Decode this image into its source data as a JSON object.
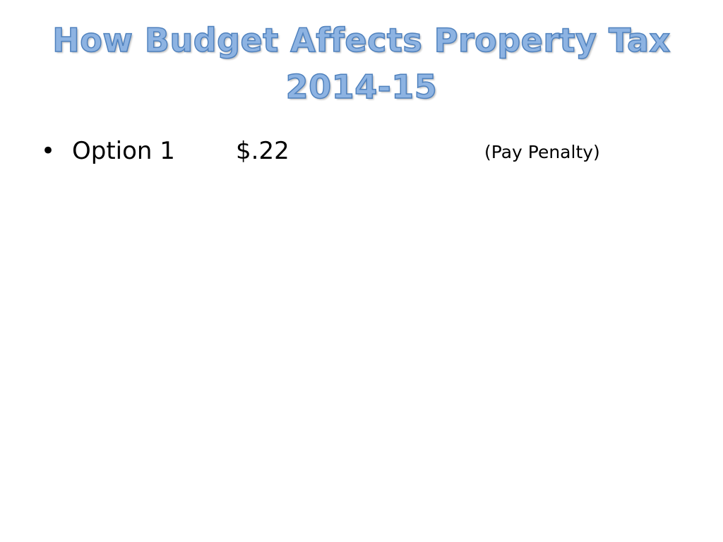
{
  "slide": {
    "title_line1": "How Budget Affects Property Tax",
    "title_line2": "2014-15",
    "title_color": "#8db3e2",
    "title_outline_color": "#4f81bd",
    "bullets": [
      {
        "marker": "•",
        "label": "Option 1",
        "value": "$.22",
        "note": "(Pay Penalty)"
      }
    ]
  }
}
